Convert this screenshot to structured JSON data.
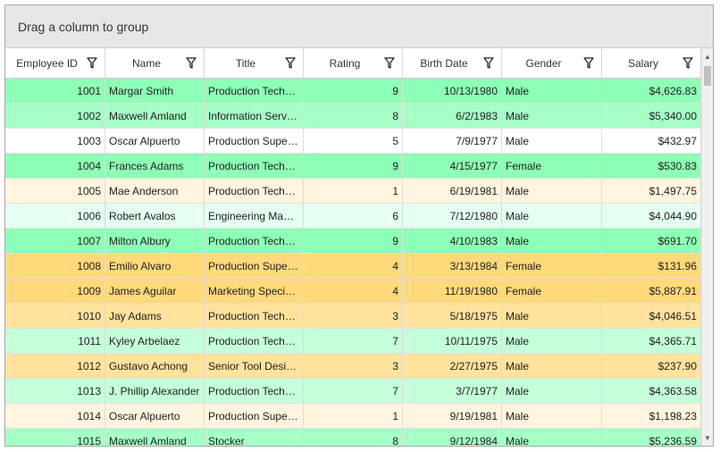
{
  "group_panel": {
    "text": "Drag a column to group"
  },
  "columns": [
    {
      "label": "Employee ID"
    },
    {
      "label": "Name"
    },
    {
      "label": "Title"
    },
    {
      "label": "Rating"
    },
    {
      "label": "Birth Date"
    },
    {
      "label": "Gender"
    },
    {
      "label": "Salary"
    }
  ],
  "rows": [
    {
      "id": "1001",
      "name": "Margar Smith",
      "title": "Production Technician",
      "rating": "9",
      "birth": "10/13/1980",
      "gender": "Male",
      "salary": "$4,626.83",
      "color": "#8dffb6"
    },
    {
      "id": "1002",
      "name": "Maxwell Amland",
      "title": "Information Services Manager",
      "rating": "8",
      "birth": "6/2/1983",
      "gender": "Male",
      "salary": "$5,340.00",
      "color": "#a6ffc6"
    },
    {
      "id": "1003",
      "name": "Oscar Alpuerto",
      "title": "Production Supervisor",
      "rating": "5",
      "birth": "7/9/1977",
      "gender": "Male",
      "salary": "$432.97",
      "color": "#ffffff"
    },
    {
      "id": "1004",
      "name": "Frances Adams",
      "title": "Production Technician",
      "rating": "9",
      "birth": "4/15/1977",
      "gender": "Female",
      "salary": "$530.83",
      "color": "#8dffb6"
    },
    {
      "id": "1005",
      "name": "Mae Anderson",
      "title": "Production Technician",
      "rating": "1",
      "birth": "6/19/1981",
      "gender": "Male",
      "salary": "$1,497.75",
      "color": "#fff4de"
    },
    {
      "id": "1006",
      "name": "Robert Avalos",
      "title": "Engineering Manager",
      "rating": "6",
      "birth": "7/12/1980",
      "gender": "Male",
      "salary": "$4,044.90",
      "color": "#e4fff0"
    },
    {
      "id": "1007",
      "name": "Milton Albury",
      "title": "Production Technician",
      "rating": "9",
      "birth": "4/10/1983",
      "gender": "Male",
      "salary": "$691.70",
      "color": "#8dffb6"
    },
    {
      "id": "1008",
      "name": "Emilio Alvaro",
      "title": "Production Supervisor",
      "rating": "4",
      "birth": "3/13/1984",
      "gender": "Female",
      "salary": "$131.96",
      "color": "#ffd97a"
    },
    {
      "id": "1009",
      "name": "James Aguilar",
      "title": "Marketing Specialist",
      "rating": "4",
      "birth": "11/19/1980",
      "gender": "Female",
      "salary": "$5,887.91",
      "color": "#ffd97a"
    },
    {
      "id": "1010",
      "name": "Jay Adams",
      "title": "Production Technician",
      "rating": "3",
      "birth": "5/18/1975",
      "gender": "Male",
      "salary": "$4,046.51",
      "color": "#ffe29c"
    },
    {
      "id": "1011",
      "name": "Kyley Arbelaez",
      "title": "Production Technician",
      "rating": "7",
      "birth": "10/11/1975",
      "gender": "Male",
      "salary": "$4,365.71",
      "color": "#c4ffd9"
    },
    {
      "id": "1012",
      "name": "Gustavo Achong",
      "title": "Senior Tool Designer",
      "rating": "3",
      "birth": "2/27/1975",
      "gender": "Male",
      "salary": "$237.90",
      "color": "#ffe29c"
    },
    {
      "id": "1013",
      "name": "J. Phillip Alexander",
      "title": "Production Technician",
      "rating": "7",
      "birth": "3/7/1977",
      "gender": "Male",
      "salary": "$4,363.58",
      "color": "#c4ffd9"
    },
    {
      "id": "1014",
      "name": "Oscar Alpuerto",
      "title": "Production Supervisor",
      "rating": "1",
      "birth": "9/19/1981",
      "gender": "Male",
      "salary": "$1,198.23",
      "color": "#fff4de"
    },
    {
      "id": "1015",
      "name": "Maxwell Amland",
      "title": "Stocker",
      "rating": "8",
      "birth": "9/12/1984",
      "gender": "Male",
      "salary": "$5,236.59",
      "color": "#a6ffc6"
    }
  ],
  "icons": {
    "filter": "filter-icon",
    "scroll_up": "chevron-up-icon",
    "scroll_down": "chevron-down-icon"
  }
}
